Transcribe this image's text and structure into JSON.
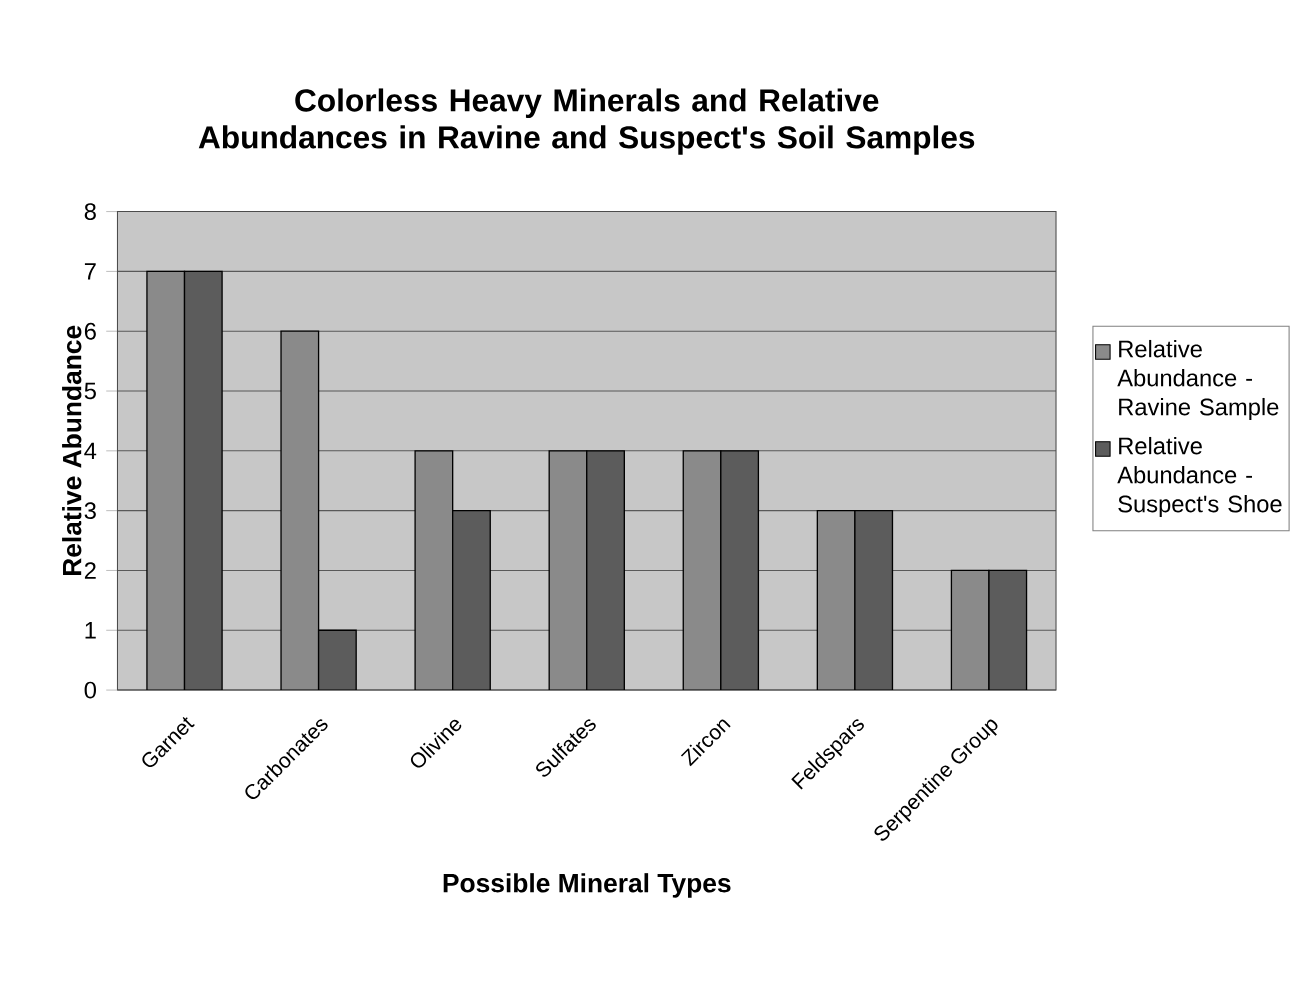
{
  "chart_data": {
    "type": "bar",
    "title": "Colorless Heavy Minerals and Relative Abundances in Ravine and Suspect's Soil Samples",
    "xlabel": "Possible Mineral Types",
    "ylabel": "Relative Abundance",
    "categories": [
      "Garnet",
      "Carbonates",
      "Olivine",
      "Sulfates",
      "Zircon",
      "Feldspars",
      "Serpentine Group"
    ],
    "series": [
      {
        "name": "Relative Abundance - Ravine Sample",
        "color": "#8a8a8a",
        "values": [
          7,
          6,
          4,
          4,
          4,
          3,
          2
        ]
      },
      {
        "name": "Relative Abundance - Suspect's Shoe",
        "color": "#5c5c5c",
        "values": [
          7,
          1,
          3,
          4,
          4,
          3,
          2
        ]
      }
    ],
    "ylim": [
      0,
      8
    ],
    "yticks": [
      0,
      1,
      2,
      3,
      4,
      5,
      6,
      7,
      8
    ],
    "grid": "y",
    "legend": "right"
  }
}
